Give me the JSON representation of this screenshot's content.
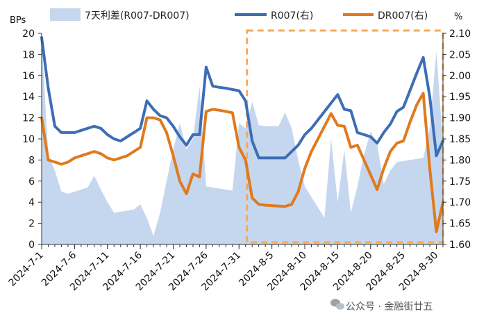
{
  "chart_data": {
    "type": "area+line",
    "left_unit": "BPs",
    "right_unit": "%",
    "ylim_left": [
      0,
      20
    ],
    "ylim_right": [
      1.6,
      2.1
    ],
    "left_ticks": [
      "0",
      "2",
      "4",
      "6",
      "8",
      "10",
      "12",
      "14",
      "16",
      "18",
      "20"
    ],
    "right_ticks": [
      "1.60",
      "1.65",
      "1.70",
      "1.75",
      "1.80",
      "1.85",
      "1.90",
      "1.95",
      "2.00",
      "2.05",
      "2.10"
    ],
    "x_tick_labels": [
      "2024-7-1",
      "2024-7-6",
      "2024-7-11",
      "2024-7-16",
      "2024-7-21",
      "2024-7-26",
      "2024-7-31",
      "2024-8-5",
      "2024-8-10",
      "2024-8-15",
      "2024-8-20",
      "2024-8-25",
      "2024-8-30"
    ],
    "x_days": [
      1,
      2,
      3,
      4,
      5,
      6,
      7,
      8,
      9,
      10,
      11,
      12,
      13,
      14,
      15,
      16,
      17,
      18,
      19,
      20,
      21,
      22,
      23,
      24,
      25,
      26,
      27,
      28,
      29,
      30,
      31,
      32,
      33,
      34,
      35,
      36,
      37,
      38,
      39,
      40,
      41,
      42,
      43,
      44,
      45,
      46,
      47,
      48,
      49,
      50,
      51,
      52,
      53,
      54,
      55,
      56,
      57,
      58,
      59,
      60,
      61,
      62
    ],
    "series": [
      {
        "name": "7天利差(R007-DR007)",
        "kind": "area",
        "axis": "left",
        "color": "#c5d6ef",
        "values": [
          19.5,
          8.5,
          7.0,
          5.0,
          4.8,
          5.0,
          5.2,
          5.4,
          6.5,
          5.2,
          4.0,
          3.0,
          3.1,
          3.2,
          3.3,
          3.8,
          2.5,
          0.8,
          3.0,
          6.0,
          9.0,
          11.5,
          9.0,
          10.0,
          15.0,
          5.5,
          5.4,
          5.3,
          5.2,
          5.1,
          11.5,
          11.0,
          13.5,
          11.3,
          11.2,
          11.2,
          11.2,
          12.5,
          11.0,
          8.0,
          5.5,
          4.5,
          3.5,
          2.5,
          10.0,
          4.0,
          9.0,
          3.0,
          5.5,
          8.5,
          10.7,
          9.5,
          5.7,
          7.0,
          7.8,
          7.9,
          8.0,
          8.1,
          8.2,
          11.0,
          18.3,
          9.5
        ]
      },
      {
        "name": "R007(右)",
        "kind": "line",
        "axis": "right",
        "color": "#3d6db5",
        "values": [
          2.09,
          1.97,
          1.88,
          1.865,
          1.865,
          1.865,
          1.87,
          1.875,
          1.88,
          1.875,
          1.86,
          1.85,
          1.845,
          1.855,
          1.865,
          1.875,
          1.94,
          1.92,
          1.905,
          1.9,
          1.88,
          1.855,
          1.835,
          1.86,
          1.86,
          2.02,
          1.975,
          1.972,
          1.97,
          1.967,
          1.964,
          1.94,
          1.845,
          1.805,
          1.805,
          1.805,
          1.805,
          1.805,
          1.82,
          1.835,
          1.86,
          1.875,
          1.895,
          1.915,
          1.935,
          1.955,
          1.92,
          1.917,
          1.865,
          1.86,
          1.855,
          1.84,
          1.865,
          1.885,
          1.915,
          1.925,
          1.965,
          2.005,
          2.043,
          1.95,
          1.81,
          1.845
        ]
      },
      {
        "name": "DR007(右)",
        "kind": "line",
        "axis": "right",
        "color": "#e07a1c",
        "values": [
          1.9,
          1.8,
          1.795,
          1.79,
          1.795,
          1.805,
          1.81,
          1.815,
          1.82,
          1.815,
          1.805,
          1.8,
          1.805,
          1.81,
          1.82,
          1.83,
          1.9,
          1.9,
          1.895,
          1.865,
          1.81,
          1.75,
          1.72,
          1.767,
          1.76,
          1.915,
          1.92,
          1.918,
          1.915,
          1.912,
          1.83,
          1.8,
          1.71,
          1.695,
          1.693,
          1.692,
          1.691,
          1.69,
          1.695,
          1.725,
          1.78,
          1.82,
          1.85,
          1.88,
          1.91,
          1.882,
          1.88,
          1.83,
          1.835,
          1.8,
          1.765,
          1.73,
          1.78,
          1.82,
          1.84,
          1.845,
          1.89,
          1.93,
          1.958,
          1.78,
          1.63,
          1.7
        ]
      }
    ],
    "annotation": {
      "type": "dashed-box",
      "color": "#f7a85b",
      "from_day": 32,
      "to_day": 62
    },
    "legend": "top"
  },
  "watermark": {
    "icon": "wechat-icon",
    "text": "公众号 · 金融街廿五"
  }
}
